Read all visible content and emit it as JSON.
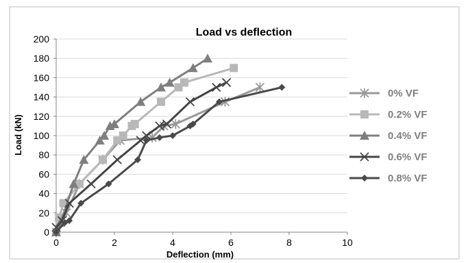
{
  "chart_data": {
    "type": "line",
    "title": "Load vs deflection",
    "xlabel": "Deflection (mm)",
    "ylabel": "Load (kN)",
    "xlim": [
      0,
      10
    ],
    "ylim": [
      0,
      200
    ],
    "x_ticks": [
      0,
      2,
      4,
      6,
      8,
      10
    ],
    "y_ticks": [
      0,
      20,
      40,
      60,
      80,
      100,
      120,
      140,
      160,
      180,
      200
    ],
    "grid": "horizontal",
    "legend_position": "right",
    "series": [
      {
        "name": "0% VF",
        "marker": "asterisk",
        "color": "#999999",
        "x": [
          0,
          0.1,
          0.35,
          0.8,
          1.6,
          2.2,
          3.3,
          3.7,
          4.1,
          5.8,
          7.0
        ],
        "y": [
          0,
          10,
          20,
          50,
          75,
          95,
          98,
          110,
          112,
          135,
          150
        ]
      },
      {
        "name": "0.2% VF",
        "marker": "square",
        "color": "#b8b8b8",
        "x": [
          0,
          0.1,
          0.25,
          0.8,
          1.6,
          2.1,
          2.3,
          2.6,
          2.7,
          3.6,
          4.2,
          4.4,
          6.1
        ],
        "y": [
          0,
          15,
          30,
          50,
          75,
          95,
          100,
          110,
          112,
          135,
          150,
          155,
          170
        ]
      },
      {
        "name": "0.4% VF",
        "marker": "triangle",
        "color": "#7f7f7f",
        "x": [
          0,
          0.15,
          0.6,
          0.95,
          1.5,
          1.65,
          1.85,
          2.0,
          2.9,
          3.6,
          3.9,
          4.7,
          5.2
        ],
        "y": [
          0,
          10,
          50,
          75,
          95,
          100,
          110,
          112,
          135,
          150,
          155,
          170,
          180
        ]
      },
      {
        "name": "0.6% VF",
        "marker": "x",
        "color": "#444444",
        "x": [
          0,
          0.2,
          0.45,
          1.2,
          2.1,
          2.9,
          3.1,
          3.55,
          3.8,
          4.6,
          5.5,
          5.85
        ],
        "y": [
          5,
          12,
          30,
          50,
          75,
          95,
          100,
          110,
          112,
          135,
          150,
          155
        ]
      },
      {
        "name": "0.8% VF",
        "marker": "diamond",
        "color": "#4a4a4a",
        "x": [
          0,
          0.3,
          0.45,
          0.85,
          1.8,
          2.8,
          3.1,
          3.55,
          4.0,
          4.6,
          4.7,
          5.6,
          7.75
        ],
        "y": [
          0,
          10,
          12,
          30,
          50,
          75,
          95,
          98,
          100,
          110,
          112,
          135,
          150
        ]
      }
    ]
  }
}
